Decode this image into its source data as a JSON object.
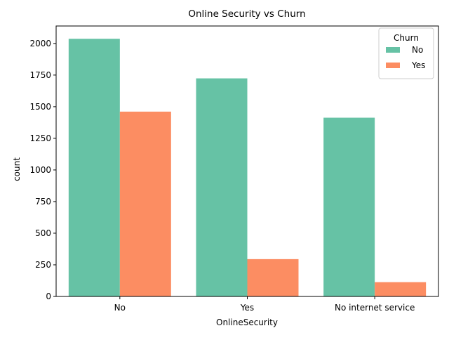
{
  "chart_data": {
    "type": "bar",
    "title": "Online Security vs Churn",
    "xlabel": "OnlineSecurity",
    "ylabel": "count",
    "categories": [
      "No",
      "Yes",
      "No internet service"
    ],
    "series": [
      {
        "name": "No",
        "values": [
          2037,
          1724,
          1413
        ],
        "color": "#66c2a5"
      },
      {
        "name": "Yes",
        "values": [
          1461,
          295,
          113
        ],
        "color": "#fc8d62"
      }
    ],
    "ylim": [
      0,
      2138
    ],
    "yticks": [
      0,
      250,
      500,
      750,
      1000,
      1250,
      1500,
      1750,
      2000
    ],
    "grid": false,
    "legend": {
      "title": "Churn",
      "placement": "top-right"
    }
  }
}
